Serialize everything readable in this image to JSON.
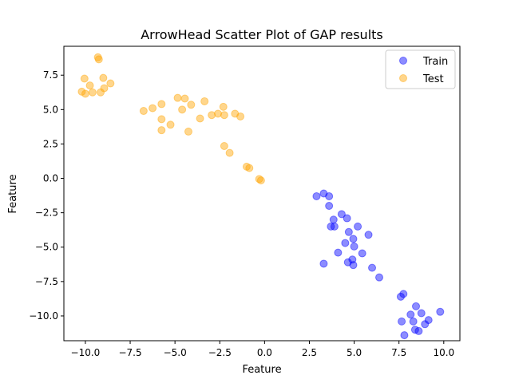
{
  "chart_data": {
    "type": "scatter",
    "title": "ArrowHead Scatter Plot of GAP results",
    "xlabel": "Feature",
    "ylabel": "Feature",
    "xlim": [
      -11.2,
      10.9
    ],
    "ylim": [
      -11.8,
      9.6
    ],
    "xticks": [
      -10.0,
      -7.5,
      -5.0,
      -2.5,
      0.0,
      2.5,
      5.0,
      7.5,
      10.0
    ],
    "xtick_labels": [
      "−10.0",
      "−7.5",
      "−5.0",
      "−2.5",
      "0.0",
      "2.5",
      "5.0",
      "7.5",
      "10.0"
    ],
    "yticks": [
      -10.0,
      -7.5,
      -5.0,
      -2.5,
      0.0,
      2.5,
      5.0,
      7.5
    ],
    "ytick_labels": [
      "−10.0",
      "−7.5",
      "−5.0",
      "−2.5",
      "0.0",
      "2.5",
      "5.0",
      "7.5"
    ],
    "grid": false,
    "legend_position": "top-right",
    "series": [
      {
        "name": "Train",
        "color": "#0000ff",
        "points": [
          [
            2.9,
            -1.3
          ],
          [
            3.3,
            -1.1
          ],
          [
            3.6,
            -1.3
          ],
          [
            3.6,
            -2.0
          ],
          [
            3.7,
            -3.5
          ],
          [
            3.85,
            -3.0
          ],
          [
            3.9,
            -3.5
          ],
          [
            4.3,
            -2.6
          ],
          [
            4.6,
            -2.9
          ],
          [
            4.1,
            -5.4
          ],
          [
            4.5,
            -4.7
          ],
          [
            4.7,
            -3.9
          ],
          [
            5.2,
            -3.5
          ],
          [
            5.8,
            -4.1
          ],
          [
            4.95,
            -4.4
          ],
          [
            5.0,
            -4.95
          ],
          [
            5.45,
            -5.45
          ],
          [
            4.9,
            -5.9
          ],
          [
            4.65,
            -6.1
          ],
          [
            4.95,
            -6.3
          ],
          [
            3.3,
            -6.2
          ],
          [
            6.0,
            -6.5
          ],
          [
            6.4,
            -7.2
          ],
          [
            7.75,
            -8.4
          ],
          [
            7.6,
            -8.6
          ],
          [
            7.65,
            -10.4
          ],
          [
            8.15,
            -9.9
          ],
          [
            8.45,
            -9.3
          ],
          [
            8.75,
            -9.8
          ],
          [
            9.8,
            -9.7
          ],
          [
            9.15,
            -10.3
          ],
          [
            8.95,
            -10.6
          ],
          [
            8.3,
            -10.4
          ],
          [
            8.4,
            -11.0
          ],
          [
            8.6,
            -11.1
          ],
          [
            7.8,
            -11.4
          ]
        ]
      },
      {
        "name": "Test",
        "color": "#ffa500",
        "points": [
          [
            -9.3,
            8.8
          ],
          [
            -9.25,
            8.65
          ],
          [
            -10.05,
            7.25
          ],
          [
            -9.75,
            6.75
          ],
          [
            -9.0,
            7.3
          ],
          [
            -8.6,
            6.9
          ],
          [
            -8.95,
            6.55
          ],
          [
            -9.15,
            6.25
          ],
          [
            -9.6,
            6.25
          ],
          [
            -10.2,
            6.3
          ],
          [
            -10.0,
            6.15
          ],
          [
            -6.75,
            4.9
          ],
          [
            -6.25,
            5.1
          ],
          [
            -5.75,
            5.4
          ],
          [
            -4.85,
            5.85
          ],
          [
            -4.45,
            5.8
          ],
          [
            -4.6,
            5.0
          ],
          [
            -4.1,
            5.35
          ],
          [
            -3.35,
            5.6
          ],
          [
            -2.3,
            5.2
          ],
          [
            -2.6,
            4.7
          ],
          [
            -2.95,
            4.6
          ],
          [
            -2.25,
            4.6
          ],
          [
            -3.6,
            4.35
          ],
          [
            -1.65,
            4.7
          ],
          [
            -1.35,
            4.5
          ],
          [
            -5.75,
            4.3
          ],
          [
            -5.25,
            3.9
          ],
          [
            -5.75,
            3.5
          ],
          [
            -4.25,
            3.4
          ],
          [
            -2.25,
            2.35
          ],
          [
            -1.95,
            1.85
          ],
          [
            -1.0,
            0.85
          ],
          [
            -0.85,
            0.75
          ],
          [
            -0.3,
            -0.05
          ],
          [
            -0.2,
            -0.15
          ]
        ]
      }
    ]
  }
}
